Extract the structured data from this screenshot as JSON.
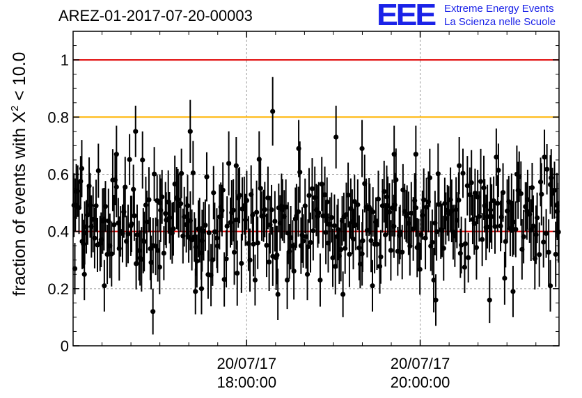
{
  "header": {
    "run_id": "AREZ-01-2017-07-20-00003",
    "logo_mark": "EEE",
    "logo_line1": "Extreme Energy Events",
    "logo_line2": "La Scienza nelle Scuole"
  },
  "chart_data": {
    "type": "scatter",
    "title": "AREZ-01-2017-07-20-00003",
    "ylabel": "fraction of events with χ² < 10.0",
    "ylabel_prefix": "fraction of events with X",
    "ylabel_sup": "2",
    "ylabel_suffix": " < 10.0",
    "xlabel": "",
    "xlim_hours": [
      16.0,
      21.6
    ],
    "ylim": [
      0,
      1.1
    ],
    "yticks": [
      0,
      0.2,
      0.4,
      0.6,
      0.8,
      1
    ],
    "ytick_labels": [
      "0",
      "0.2",
      "0.4",
      "0.6",
      "0.8",
      "1"
    ],
    "xticks": [
      {
        "hour": 18.0,
        "line1": "20/07/17",
        "line2": "18:00:00"
      },
      {
        "hour": 20.0,
        "line1": "20/07/17",
        "line2": "20:00:00"
      }
    ],
    "grid": true,
    "reference_lines": [
      {
        "y": 1.0,
        "color": "#e00000"
      },
      {
        "y": 0.8,
        "color": "#ffb400"
      },
      {
        "y": 0.4,
        "color": "#e00000"
      }
    ],
    "series_color": "#000000",
    "n_points": 380,
    "mean": 0.43,
    "typical_error": 0.1,
    "highlighted_points": [
      {
        "x_hour": 16.02,
        "y": 0.27,
        "err": 0.09
      },
      {
        "x_hour": 16.1,
        "y": 0.62,
        "err": 0.1
      },
      {
        "x_hour": 16.13,
        "y": 0.25,
        "err": 0.09
      },
      {
        "x_hour": 16.36,
        "y": 0.21,
        "err": 0.09
      },
      {
        "x_hour": 16.5,
        "y": 0.67,
        "err": 0.1
      },
      {
        "x_hour": 16.72,
        "y": 0.75,
        "err": 0.09
      },
      {
        "x_hour": 16.8,
        "y": 0.65,
        "err": 0.1
      },
      {
        "x_hour": 16.92,
        "y": 0.12,
        "err": 0.08
      },
      {
        "x_hour": 17.0,
        "y": 0.5,
        "err": 0.1
      },
      {
        "x_hour": 17.35,
        "y": 0.75,
        "err": 0.11
      },
      {
        "x_hour": 17.41,
        "y": 0.19,
        "err": 0.08
      },
      {
        "x_hour": 17.48,
        "y": 0.2,
        "err": 0.09
      },
      {
        "x_hour": 17.88,
        "y": 0.63,
        "err": 0.1
      },
      {
        "x_hour": 18.3,
        "y": 0.82,
        "err": 0.12
      },
      {
        "x_hour": 18.36,
        "y": 0.18,
        "err": 0.09
      },
      {
        "x_hour": 18.6,
        "y": 0.69,
        "err": 0.1
      },
      {
        "x_hour": 18.7,
        "y": 0.25,
        "err": 0.09
      },
      {
        "x_hour": 19.03,
        "y": 0.73,
        "err": 0.11
      },
      {
        "x_hour": 19.11,
        "y": 0.18,
        "err": 0.08
      },
      {
        "x_hour": 19.33,
        "y": 0.69,
        "err": 0.1
      },
      {
        "x_hour": 19.45,
        "y": 0.21,
        "err": 0.09
      },
      {
        "x_hour": 19.7,
        "y": 0.67,
        "err": 0.1
      },
      {
        "x_hour": 19.95,
        "y": 0.67,
        "err": 0.1
      },
      {
        "x_hour": 20.18,
        "y": 0.16,
        "err": 0.09
      },
      {
        "x_hour": 20.45,
        "y": 0.63,
        "err": 0.1
      },
      {
        "x_hour": 20.8,
        "y": 0.16,
        "err": 0.08
      },
      {
        "x_hour": 21.07,
        "y": 0.19,
        "err": 0.09
      },
      {
        "x_hour": 21.5,
        "y": 0.21,
        "err": 0.09
      },
      {
        "x_hour": 21.58,
        "y": 0.47,
        "err": 0.1
      }
    ]
  }
}
